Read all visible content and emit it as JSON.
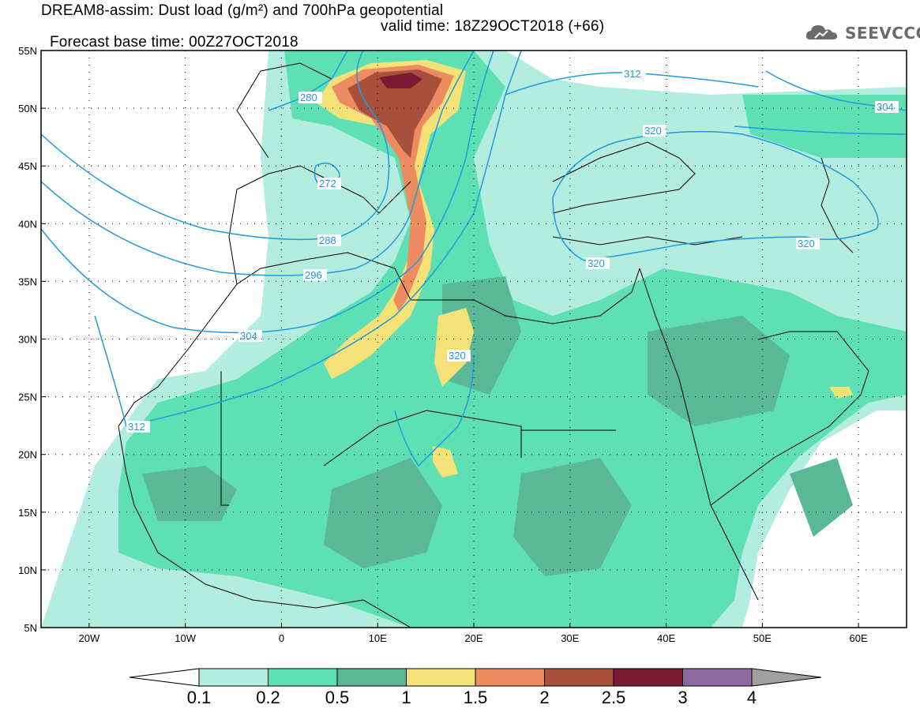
{
  "header": {
    "title_line1": "DREAM8-assim: Dust load (g/m²) and 700hPa geopotential",
    "title_line2_base": "Forecast base time: 00Z27OCT2018",
    "title_line2_valid": "valid time: 18Z29OCT2018 (+66)",
    "logo_text": "SEEVCCC",
    "logo_icon": "cloud-logo-icon"
  },
  "map": {
    "lat_labels": [
      "55N",
      "50N",
      "45N",
      "40N",
      "35N",
      "30N",
      "25N",
      "20N",
      "15N",
      "10N",
      "5N"
    ],
    "lat_values": [
      55,
      50,
      45,
      40,
      35,
      30,
      25,
      20,
      15,
      10,
      5
    ],
    "lon_labels": [
      "20W",
      "10W",
      "0",
      "10E",
      "20E",
      "30E",
      "40E",
      "50E",
      "60E"
    ],
    "lon_values": [
      -20,
      -10,
      0,
      10,
      20,
      30,
      40,
      50,
      60
    ],
    "lon_range": [
      -25,
      65
    ],
    "lat_range": [
      5,
      55
    ],
    "contour_labels": [
      "280",
      "272",
      "288",
      "296",
      "304",
      "312",
      "320",
      "312",
      "320",
      "320",
      "304",
      "320"
    ],
    "contour_color": "#1f9be0"
  },
  "colorbar": {
    "levels": [
      "0.1",
      "0.2",
      "0.5",
      "1",
      "1.5",
      "2",
      "2.5",
      "3",
      "4"
    ],
    "colors": [
      "#ffffff",
      "#b2ede0",
      "#5ee0b4",
      "#5ab896",
      "#f4e278",
      "#ec8c60",
      "#a8503c",
      "#7a1a34",
      "#8c6aa0",
      "#a0a0a0"
    ]
  }
}
